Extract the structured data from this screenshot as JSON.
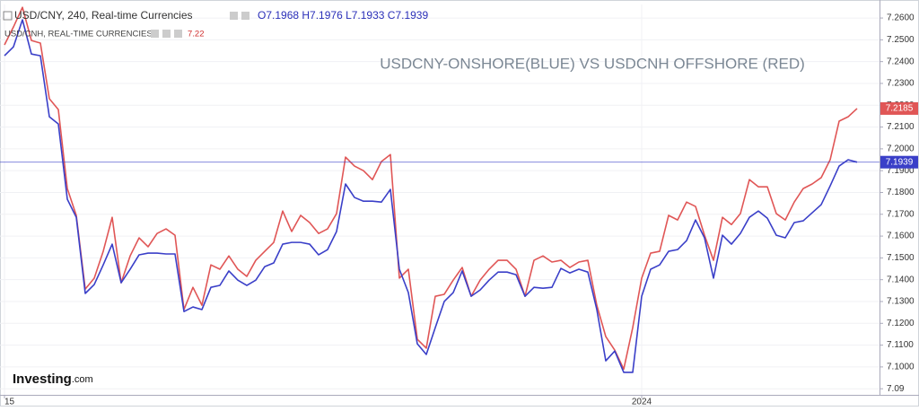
{
  "chart_data": {
    "type": "line",
    "title": "USDCNY-ONSHORE(BLUE) VS USDCNH OFFSHORE (RED)",
    "header": {
      "line1": "USD/CNY, 240, Real-time Currencies",
      "ohlc": "O7.1968 H7.1976 L7.1933 C7.1939",
      "line2": "USD/CNH, REAL-TIME CURRENCIES",
      "line2_value": "7.22"
    },
    "logo": {
      "main": "Investing",
      "suffix": ".com"
    },
    "categories": [
      "15",
      null,
      null,
      null,
      null,
      null,
      null,
      null,
      null,
      null,
      null,
      null,
      null,
      null,
      null,
      null,
      null,
      null,
      null,
      null,
      null,
      null,
      null,
      null,
      null,
      null,
      null,
      null,
      null,
      null,
      null,
      null,
      null,
      null,
      null,
      null,
      null,
      null,
      null,
      null,
      null,
      null,
      null,
      null,
      null,
      null,
      null,
      null,
      null,
      null,
      null,
      null,
      null,
      null,
      null,
      null,
      null,
      null,
      null,
      null,
      null,
      null,
      null,
      null,
      null,
      null,
      null,
      null,
      null,
      null,
      null,
      "2024",
      null,
      null,
      null,
      null,
      null,
      null,
      null,
      null,
      null,
      null,
      null,
      null,
      null,
      null,
      null,
      null,
      null,
      null,
      null,
      null,
      null,
      null,
      null,
      null
    ],
    "series": [
      {
        "color": "#e05656",
        "values": [
          7.2477,
          7.2559,
          7.2649,
          7.2497,
          7.2485,
          7.223,
          7.218,
          7.1818,
          7.1695,
          7.1357,
          7.1407,
          7.153,
          7.1686,
          7.1386,
          7.1509,
          7.1592,
          7.1551,
          7.1612,
          7.1633,
          7.1604,
          7.1263,
          7.1365,
          7.1283,
          7.1468,
          7.1448,
          7.1509,
          7.1448,
          7.1415,
          7.1489,
          7.153,
          7.1571,
          7.1715,
          7.1621,
          7.1695,
          7.1662,
          7.1612,
          7.1633,
          7.1703,
          7.1962,
          7.1921,
          7.19,
          7.1859,
          7.1942,
          7.1974,
          7.1407,
          7.1448,
          7.1127,
          7.1086,
          7.1324,
          7.1333,
          7.1398,
          7.1456,
          7.1324,
          7.1398,
          7.1448,
          7.1489,
          7.1489,
          7.1448,
          7.1324,
          7.1489,
          7.1509,
          7.1481,
          7.1489,
          7.1456,
          7.1481,
          7.1489,
          7.1283,
          7.1139,
          7.1077,
          7.099,
          7.118,
          7.1407,
          7.1522,
          7.153,
          7.1695,
          7.1674,
          7.1756,
          7.1736,
          7.1604,
          7.1489,
          7.1686,
          7.1653,
          7.1703,
          7.1859,
          7.1826,
          7.1826,
          7.1703,
          7.1674,
          7.1756,
          7.1818,
          7.1839,
          7.1868,
          7.195,
          7.2127,
          7.2147,
          7.2185
        ]
      },
      {
        "color": "#3a3fc8",
        "values": [
          7.2427,
          7.2468,
          7.2592,
          7.2435,
          7.2427,
          7.2147,
          7.2114,
          7.1769,
          7.1686,
          7.1337,
          7.1378,
          7.1468,
          7.1563,
          7.1386,
          7.1448,
          7.1514,
          7.1522,
          7.1522,
          7.1518,
          7.1518,
          7.1254,
          7.1275,
          7.1263,
          7.1365,
          7.1374,
          7.144,
          7.1398,
          7.1374,
          7.1398,
          7.146,
          7.1477,
          7.1563,
          7.1571,
          7.1571,
          7.1563,
          7.1514,
          7.1538,
          7.1621,
          7.1839,
          7.1777,
          7.176,
          7.176,
          7.1756,
          7.1814,
          7.1448,
          7.1341,
          7.1106,
          7.1057,
          7.118,
          7.13,
          7.1341,
          7.144,
          7.1324,
          7.1353,
          7.1398,
          7.1435,
          7.1435,
          7.1423,
          7.1324,
          7.1365,
          7.1361,
          7.1365,
          7.1452,
          7.1431,
          7.1448,
          7.1435,
          7.1263,
          7.1028,
          7.1073,
          7.0975,
          7.0975,
          7.1324,
          7.1448,
          7.1468,
          7.153,
          7.1538,
          7.1579,
          7.1674,
          7.1592,
          7.1407,
          7.1604,
          7.1563,
          7.1612,
          7.1686,
          7.1715,
          7.1682,
          7.1604,
          7.1592,
          7.1662,
          7.167,
          7.1707,
          7.1744,
          7.183,
          7.1921,
          7.195,
          7.1939
        ]
      }
    ],
    "ylim": [
      7.0872,
      7.2662
    ],
    "yticks": [
      {
        "value": 7.26,
        "label": "7.2600"
      },
      {
        "value": 7.25,
        "label": "7.2500"
      },
      {
        "value": 7.24,
        "label": "7.2400"
      },
      {
        "value": 7.23,
        "label": "7.2300"
      },
      {
        "value": 7.22,
        "label": "7.2200"
      },
      {
        "value": 7.21,
        "label": "7.2100"
      },
      {
        "value": 7.2,
        "label": "7.2000"
      },
      {
        "value": 7.19,
        "label": "7.1900"
      },
      {
        "value": 7.18,
        "label": "7.1800"
      },
      {
        "value": 7.17,
        "label": "7.1700"
      },
      {
        "value": 7.16,
        "label": "7.1600"
      },
      {
        "value": 7.15,
        "label": "7.1500"
      },
      {
        "value": 7.14,
        "label": "7.1400"
      },
      {
        "value": 7.13,
        "label": "7.1300"
      },
      {
        "value": 7.12,
        "label": "7.1200"
      },
      {
        "value": 7.11,
        "label": "7.1100"
      },
      {
        "value": 7.1,
        "label": "7.1000"
      },
      7.09
    ],
    "grid": true
  }
}
